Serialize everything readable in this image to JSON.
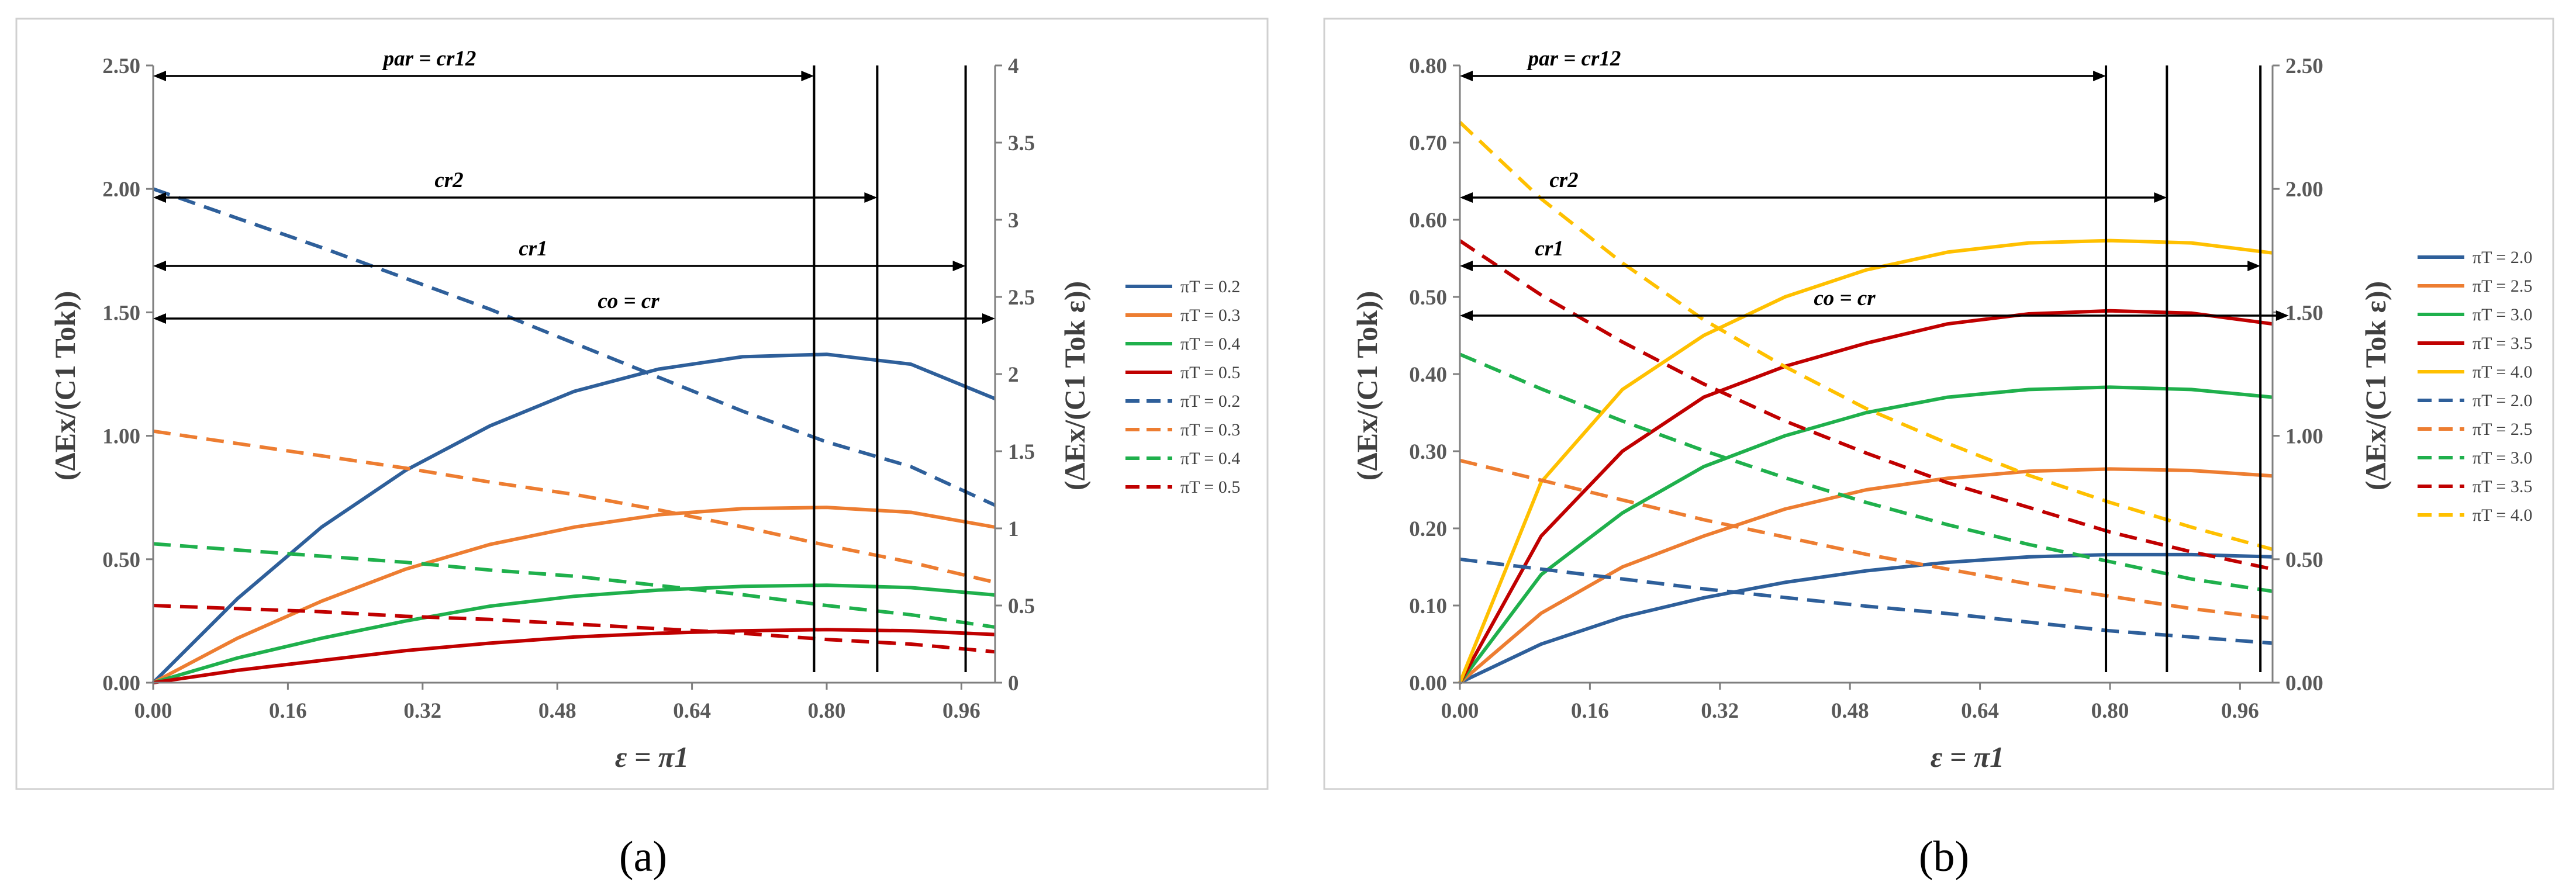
{
  "figure": {
    "panel_labels": [
      "(a)",
      "(b)"
    ]
  },
  "chart_data": [
    {
      "type": "line",
      "panel": "(a)",
      "xlabel": "ε = π1",
      "ylabel": "(ΔEx/(C1 Tok))",
      "y2label": "(ΔEx/(C1 Tok ε))",
      "xlim": [
        0,
        1.0
      ],
      "ylim": [
        0,
        2.5
      ],
      "y2lim": [
        0,
        4
      ],
      "xticks": [
        "0.00",
        "0.16",
        "0.32",
        "0.48",
        "0.64",
        "0.80",
        "0.96"
      ],
      "yticks": [
        "0.00",
        "0.50",
        "1.00",
        "1.50",
        "2.00",
        "2.50"
      ],
      "y2ticks": [
        "0",
        "0.5",
        "1",
        "1.5",
        "2",
        "2.5",
        "3",
        "3.5",
        "4"
      ],
      "grid": false,
      "legend_position": "right",
      "x": [
        0,
        0.1,
        0.2,
        0.3,
        0.4,
        0.5,
        0.6,
        0.7,
        0.8,
        0.9,
        1.0
      ],
      "series": [
        {
          "name": "πT = 0.2",
          "axis": "left",
          "style": "solid",
          "color": "#2e5f9a",
          "values": [
            0,
            0.34,
            0.63,
            0.86,
            1.04,
            1.18,
            1.27,
            1.32,
            1.33,
            1.29,
            1.15
          ]
        },
        {
          "name": "πT = 0.3",
          "axis": "left",
          "style": "solid",
          "color": "#ed7d31",
          "values": [
            0,
            0.18,
            0.33,
            0.46,
            0.56,
            0.63,
            0.68,
            0.705,
            0.71,
            0.69,
            0.63
          ]
        },
        {
          "name": "πT = 0.4",
          "axis": "left",
          "style": "solid",
          "color": "#1fb04c",
          "values": [
            0,
            0.1,
            0.18,
            0.25,
            0.31,
            0.35,
            0.375,
            0.39,
            0.395,
            0.385,
            0.355
          ]
        },
        {
          "name": "πT = 0.5",
          "axis": "left",
          "style": "solid",
          "color": "#c00000",
          "values": [
            0,
            0.05,
            0.09,
            0.13,
            0.16,
            0.185,
            0.2,
            0.21,
            0.215,
            0.21,
            0.195
          ]
        },
        {
          "name": "πT = 0.2",
          "axis": "right",
          "style": "dashed",
          "color": "#2e5f9a",
          "values": [
            3.2,
            3.01,
            2.82,
            2.62,
            2.42,
            2.2,
            1.98,
            1.76,
            1.56,
            1.4,
            1.15
          ]
        },
        {
          "name": "πT = 0.3",
          "axis": "right",
          "style": "dashed",
          "color": "#ed7d31",
          "values": [
            1.63,
            1.55,
            1.47,
            1.39,
            1.3,
            1.22,
            1.12,
            1.01,
            0.89,
            0.78,
            0.65
          ]
        },
        {
          "name": "πT = 0.4",
          "axis": "right",
          "style": "dashed",
          "color": "#1fb04c",
          "values": [
            0.9,
            0.86,
            0.82,
            0.78,
            0.73,
            0.69,
            0.63,
            0.57,
            0.5,
            0.44,
            0.36
          ]
        },
        {
          "name": "πT = 0.5",
          "axis": "right",
          "style": "dashed",
          "color": "#c00000",
          "values": [
            0.5,
            0.48,
            0.46,
            0.43,
            0.41,
            0.38,
            0.35,
            0.32,
            0.28,
            0.25,
            0.2
          ]
        }
      ],
      "annotations": [
        {
          "text": "par = cr12",
          "x_end": 0.785
        },
        {
          "text": "cr2",
          "x_end": 0.86
        },
        {
          "text": "cr1",
          "x_end": 0.965
        },
        {
          "text": "co = cr",
          "x_end": 1.0
        }
      ],
      "vertical_lines_x": [
        0.785,
        0.86,
        0.965
      ]
    },
    {
      "type": "line",
      "panel": "(b)",
      "xlabel": "ε = π1",
      "ylabel": "(ΔEx/(C1 Tok))",
      "y2label": "(ΔEx/(C1 Tok ε))",
      "xlim": [
        0,
        1.0
      ],
      "ylim": [
        0,
        0.8
      ],
      "y2lim": [
        0,
        2.5
      ],
      "xticks": [
        "0.00",
        "0.16",
        "0.32",
        "0.48",
        "0.64",
        "0.80",
        "0.96"
      ],
      "yticks": [
        "0.00",
        "0.10",
        "0.20",
        "0.30",
        "0.40",
        "0.50",
        "0.60",
        "0.70",
        "0.80"
      ],
      "y2ticks": [
        "0.00",
        "0.50",
        "1.00",
        "1.50",
        "2.00",
        "2.50"
      ],
      "grid": false,
      "legend_position": "right",
      "x": [
        0,
        0.1,
        0.2,
        0.3,
        0.4,
        0.5,
        0.6,
        0.7,
        0.8,
        0.9,
        1.0
      ],
      "series": [
        {
          "name": "πT = 2.0",
          "axis": "left",
          "style": "solid",
          "color": "#2e5f9a",
          "values": [
            0,
            0.05,
            0.085,
            0.11,
            0.13,
            0.145,
            0.156,
            0.163,
            0.166,
            0.166,
            0.163
          ]
        },
        {
          "name": "πT = 2.5",
          "axis": "left",
          "style": "solid",
          "color": "#ed7d31",
          "values": [
            0,
            0.09,
            0.15,
            0.19,
            0.225,
            0.25,
            0.265,
            0.274,
            0.277,
            0.275,
            0.268
          ]
        },
        {
          "name": "πT = 3.0",
          "axis": "left",
          "style": "solid",
          "color": "#1fb04c",
          "values": [
            0,
            0.14,
            0.22,
            0.28,
            0.32,
            0.35,
            0.37,
            0.38,
            0.383,
            0.38,
            0.37
          ]
        },
        {
          "name": "πT = 3.5",
          "axis": "left",
          "style": "solid",
          "color": "#c00000",
          "values": [
            0,
            0.19,
            0.3,
            0.37,
            0.41,
            0.44,
            0.465,
            0.478,
            0.482,
            0.479,
            0.465
          ]
        },
        {
          "name": "πT = 4.0",
          "axis": "left",
          "style": "solid",
          "color": "#ffc000",
          "values": [
            0,
            0.26,
            0.38,
            0.45,
            0.5,
            0.535,
            0.558,
            0.57,
            0.573,
            0.57,
            0.557
          ]
        },
        {
          "name": "πT = 2.0",
          "axis": "right",
          "style": "dashed",
          "color": "#2e5f9a",
          "values": [
            0.5,
            0.46,
            0.42,
            0.38,
            0.345,
            0.31,
            0.28,
            0.245,
            0.21,
            0.185,
            0.16
          ]
        },
        {
          "name": "πT = 2.5",
          "axis": "right",
          "style": "dashed",
          "color": "#ed7d31",
          "values": [
            0.9,
            0.82,
            0.74,
            0.66,
            0.59,
            0.52,
            0.46,
            0.4,
            0.35,
            0.3,
            0.26
          ]
        },
        {
          "name": "πT = 3.0",
          "axis": "right",
          "style": "dashed",
          "color": "#1fb04c",
          "values": [
            1.33,
            1.19,
            1.06,
            0.94,
            0.83,
            0.73,
            0.64,
            0.56,
            0.49,
            0.42,
            0.37
          ]
        },
        {
          "name": "πT = 3.5",
          "axis": "right",
          "style": "dashed",
          "color": "#c00000",
          "values": [
            1.79,
            1.57,
            1.38,
            1.21,
            1.06,
            0.93,
            0.81,
            0.71,
            0.61,
            0.53,
            0.46
          ]
        },
        {
          "name": "πT = 4.0",
          "axis": "right",
          "style": "dashed",
          "color": "#ffc000",
          "values": [
            2.27,
            1.96,
            1.7,
            1.47,
            1.28,
            1.11,
            0.97,
            0.84,
            0.73,
            0.63,
            0.54
          ]
        }
      ],
      "annotations": [
        {
          "text": "par = cr12",
          "x_end": 0.795
        },
        {
          "text": "cr2",
          "x_end": 0.87
        },
        {
          "text": "cr1",
          "x_end": 0.985
        },
        {
          "text": "co = cr",
          "x_end": 1.02
        }
      ],
      "vertical_lines_x": [
        0.795,
        0.87,
        0.985
      ]
    }
  ]
}
